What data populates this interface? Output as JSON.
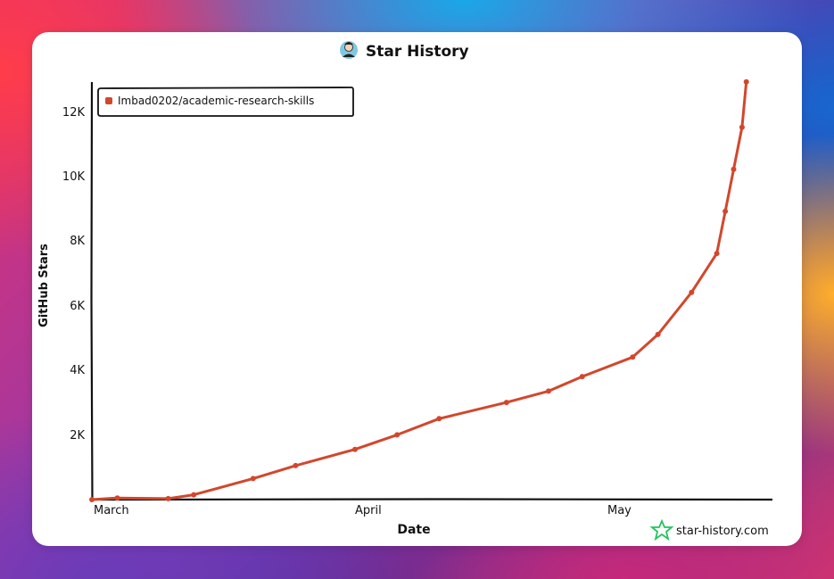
{
  "chart_data": {
    "type": "line",
    "title": "Star History",
    "xlabel": "Date",
    "ylabel": "GitHub Stars",
    "x_ticks": [
      "March",
      "April",
      "May"
    ],
    "y_ticks": [
      "2K",
      "4K",
      "6K",
      "8K",
      "10K",
      "12K"
    ],
    "ylim": [
      0,
      12900
    ],
    "xlim": [
      "2026-03-01",
      "2026-05-20"
    ],
    "grid": false,
    "legend_position": "top-left",
    "series": [
      {
        "name": "Imbad0202/academic-research-skills",
        "color": "#d2472c",
        "points": [
          {
            "x": "2026-03-01",
            "y": 0
          },
          {
            "x": "2026-03-04",
            "y": 50
          },
          {
            "x": "2026-03-10",
            "y": 30
          },
          {
            "x": "2026-03-13",
            "y": 150
          },
          {
            "x": "2026-03-20",
            "y": 650
          },
          {
            "x": "2026-03-25",
            "y": 1050
          },
          {
            "x": "2026-04-01",
            "y": 1550
          },
          {
            "x": "2026-04-06",
            "y": 2000
          },
          {
            "x": "2026-04-11",
            "y": 2500
          },
          {
            "x": "2026-04-19",
            "y": 3000
          },
          {
            "x": "2026-04-24",
            "y": 3350
          },
          {
            "x": "2026-04-28",
            "y": 3800
          },
          {
            "x": "2026-05-04",
            "y": 4400
          },
          {
            "x": "2026-05-07",
            "y": 5100
          },
          {
            "x": "2026-05-11",
            "y": 6400
          },
          {
            "x": "2026-05-14",
            "y": 7600
          },
          {
            "x": "2026-05-15",
            "y": 8900
          },
          {
            "x": "2026-05-16",
            "y": 10200
          },
          {
            "x": "2026-05-17",
            "y": 11500
          },
          {
            "x": "2026-05-17T12:00",
            "y": 12900
          }
        ]
      }
    ]
  },
  "watermark": "star-history.com",
  "colors": {
    "line": "#d2472c",
    "axis": "#111111",
    "watermark_logo": "#22c55e"
  },
  "icons": {
    "title_avatar": "avatar-icon",
    "watermark_logo": "star-logo-icon"
  }
}
